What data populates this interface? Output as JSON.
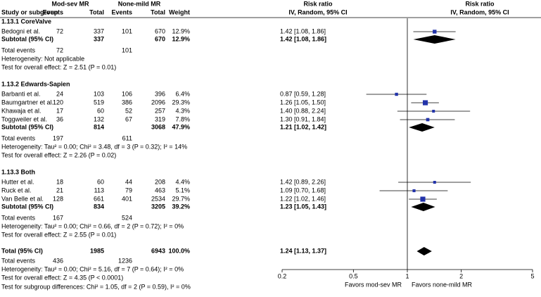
{
  "chart_data": {
    "type": "forest",
    "group_headers": [
      "Mod-sev MR",
      "None-mild MR",
      "Risk ratio",
      "Risk ratio"
    ],
    "columns": [
      "Study or subgroup",
      "Events",
      "Total",
      "Events",
      "Total",
      "Weight",
      "IV, Random, 95% CI",
      "IV, Random, 95% CI"
    ],
    "subgroups": [
      {
        "title": "1.13.1 CoreValve",
        "studies": [
          {
            "name": "Bedogni et al.",
            "events1": 72,
            "total1": 337,
            "events2": 101,
            "total2": 670,
            "weight": 12.9,
            "weight_label": "12.9%",
            "rr": 1.42,
            "ci": [
              1.08,
              1.86
            ],
            "ci_label": "1.42 [1.08, 1.86]"
          }
        ],
        "subtotal": {
          "name": "Subtotal (95% CI)",
          "total1": 337,
          "total2": 670,
          "weight_label": "12.9%",
          "rr": 1.42,
          "ci": [
            1.08,
            1.86
          ],
          "ci_label": "1.42 [1.08, 1.86]"
        },
        "events": {
          "name": "Total events",
          "events1": 72,
          "events2": 101
        },
        "heterogeneity": "Heterogeneity: Not applicable",
        "test": "Test for overall effect: Z = 2.51 (P = 0.01)"
      },
      {
        "title": "1.13.2 Edwards-Sapien",
        "studies": [
          {
            "name": "Barbanti et al.",
            "events1": 24,
            "total1": 103,
            "events2": 106,
            "total2": 396,
            "weight": 6.4,
            "weight_label": "6.4%",
            "rr": 0.87,
            "ci": [
              0.59,
              1.28
            ],
            "ci_label": "0.87 [0.59, 1.28]"
          },
          {
            "name": "Baumgartner et al.",
            "events1": 120,
            "total1": 519,
            "events2": 386,
            "total2": 2096,
            "weight": 29.3,
            "weight_label": "29.3%",
            "rr": 1.26,
            "ci": [
              1.05,
              1.5
            ],
            "ci_label": "1.26 [1.05, 1.50]"
          },
          {
            "name": "Khawaja et al.",
            "events1": 17,
            "total1": 60,
            "events2": 52,
            "total2": 257,
            "weight": 4.3,
            "weight_label": "4.3%",
            "rr": 1.4,
            "ci": [
              0.88,
              2.24
            ],
            "ci_label": "1.40 [0.88, 2.24]"
          },
          {
            "name": "Toggweiler et al.",
            "events1": 36,
            "total1": 132,
            "events2": 67,
            "total2": 319,
            "weight": 7.8,
            "weight_label": "7.8%",
            "rr": 1.3,
            "ci": [
              0.91,
              1.84
            ],
            "ci_label": "1.30 [0.91, 1.84]"
          }
        ],
        "subtotal": {
          "name": "Subtotal (95% CI)",
          "total1": 814,
          "total2": 3068,
          "weight_label": "47.9%",
          "rr": 1.21,
          "ci": [
            1.02,
            1.42
          ],
          "ci_label": "1.21 [1.02, 1.42]"
        },
        "events": {
          "name": "Total events",
          "events1": 197,
          "events2": 611
        },
        "heterogeneity": "Heterogeneity: Tau² = 0.00; Chi² = 3.48, df = 3 (P = 0.32); I² = 14%",
        "test": "Test for overall effect: Z = 2.26 (P = 0.02)"
      },
      {
        "title": "1.13.3 Both",
        "studies": [
          {
            "name": "Hutter et al.",
            "events1": 18,
            "total1": 60,
            "events2": 44,
            "total2": 208,
            "weight": 4.4,
            "weight_label": "4.4%",
            "rr": 1.42,
            "ci": [
              0.89,
              2.26
            ],
            "ci_label": "1.42 [0.89, 2.26]"
          },
          {
            "name": "Ruck et al.",
            "events1": 21,
            "total1": 113,
            "events2": 79,
            "total2": 463,
            "weight": 5.1,
            "weight_label": "5.1%",
            "rr": 1.09,
            "ci": [
              0.7,
              1.68
            ],
            "ci_label": "1.09 [0.70, 1.68]"
          },
          {
            "name": "Van Belle et al.",
            "events1": 128,
            "total1": 661,
            "events2": 401,
            "total2": 2534,
            "weight": 29.7,
            "weight_label": "29.7%",
            "rr": 1.22,
            "ci": [
              1.02,
              1.46
            ],
            "ci_label": "1.22 [1.02, 1.46]"
          }
        ],
        "subtotal": {
          "name": "Subtotal (95% CI)",
          "total1": 834,
          "total2": 3205,
          "weight_label": "39.2%",
          "rr": 1.23,
          "ci": [
            1.05,
            1.43
          ],
          "ci_label": "1.23 [1.05, 1.43]"
        },
        "events": {
          "name": "Total events",
          "events1": 167,
          "events2": 524
        },
        "heterogeneity": "Heterogeneity: Tau² = 0.00; Chi² = 0.66, df = 2 (P = 0.72); I² = 0%",
        "test": "Test for overall effect: Z = 2.55 (P = 0.01)"
      }
    ],
    "overall": {
      "name": "Total (95% CI)",
      "total1": 1985,
      "total2": 6943,
      "weight_label": "100.0%",
      "rr": 1.24,
      "ci": [
        1.13,
        1.37
      ],
      "ci_label": "1.24 [1.13, 1.37]"
    },
    "overall_events": {
      "name": "Total events",
      "events1": 436,
      "events2": 1236
    },
    "overall_heterogeneity": "Heterogeneity: Tau² = 0.00; Chi² = 5.16, df = 7 (P = 0.64); I² = 0%",
    "overall_test": "Test for overall effect: Z = 4.35 (P < 0.0001)",
    "subgroup_test": "Test for subgroup differences: Chi² = 1.05, df = 2 (P = 0.59), I² = 0%",
    "xlim": [
      0.2,
      5
    ],
    "xticks": [
      0.2,
      0.5,
      1,
      2,
      5
    ],
    "log_x": true,
    "xlabel_left": "Favors mod-sev MR",
    "xlabel_right": "Favors none-mild MR",
    "marker_color": "#2233aa"
  }
}
